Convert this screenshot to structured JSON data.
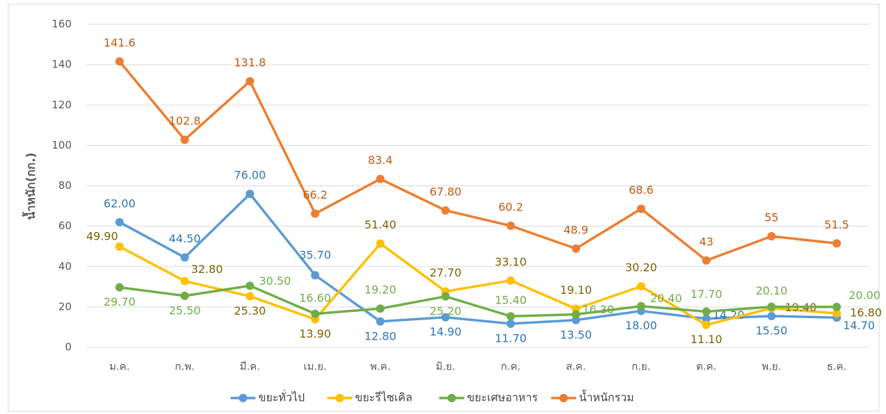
{
  "chart_data": {
    "type": "line",
    "y_label": "น้ำหนัก(กก.)",
    "categories": [
      "ม.ค.",
      "ก.พ.",
      "มี.ค.",
      "เม.ย.",
      "พ.ค.",
      "มิ.ย.",
      "ก.ค.",
      "ส.ค.",
      "ก.ย.",
      "ต.ค.",
      "พ.ย.",
      "ธ.ค."
    ],
    "series": [
      {
        "name": "ขยะทั่วไป",
        "color": "#5b9bd5",
        "values": [
          62,
          44.5,
          76,
          35.7,
          12.8,
          14.9,
          11.7,
          13.5,
          18,
          14.2,
          15.5,
          14.7
        ],
        "value_labels": [
          "62.00",
          "44.50",
          "76.00",
          "35.70",
          "12.80",
          "14.90",
          "11.70",
          "13.50",
          "18.00",
          "14.20",
          "15.50",
          "14.70"
        ]
      },
      {
        "name": "ขยะรีไซเคิล",
        "color": "#ffc000",
        "values": [
          49.9,
          32.8,
          25.3,
          13.9,
          51.4,
          27.7,
          33.1,
          19.1,
          30.2,
          11.1,
          19.4,
          16.8
        ],
        "value_labels": [
          "49.90",
          "32.80",
          "25.30",
          "13.90",
          "51.40",
          "27.70",
          "33.10",
          "19.10",
          "30.20",
          "11.10",
          "19.40",
          "16.80"
        ]
      },
      {
        "name": "ขยะเศษอาหาร",
        "color": "#70ad47",
        "values": [
          29.7,
          25.5,
          30.5,
          16.6,
          19.2,
          25.2,
          15.4,
          16.3,
          20.4,
          17.7,
          20.1,
          20
        ],
        "value_labels": [
          "29.70",
          "25.50",
          "30.50",
          "16.60",
          "19.20",
          "25.20",
          "15.40",
          "16.30",
          "20.40",
          "17.70",
          "20.10",
          "20.00"
        ]
      },
      {
        "name": "น้ำหนักรวม",
        "color": "#ed7d31",
        "values": [
          141.6,
          102.8,
          131.8,
          66.2,
          83.4,
          67.8,
          60.2,
          48.9,
          68.6,
          43,
          55,
          51.5
        ],
        "value_labels": [
          "141.6",
          "102.8",
          "131.8",
          "66.2",
          "83.4",
          "67.80",
          "60.2",
          "48.9",
          "68.6",
          "43",
          "55",
          "51.5"
        ]
      }
    ],
    "ylim": [
      0,
      160
    ],
    "yticks": [
      0,
      20,
      40,
      60,
      80,
      100,
      120,
      140,
      160
    ],
    "grid": true,
    "legend": "bottom"
  }
}
